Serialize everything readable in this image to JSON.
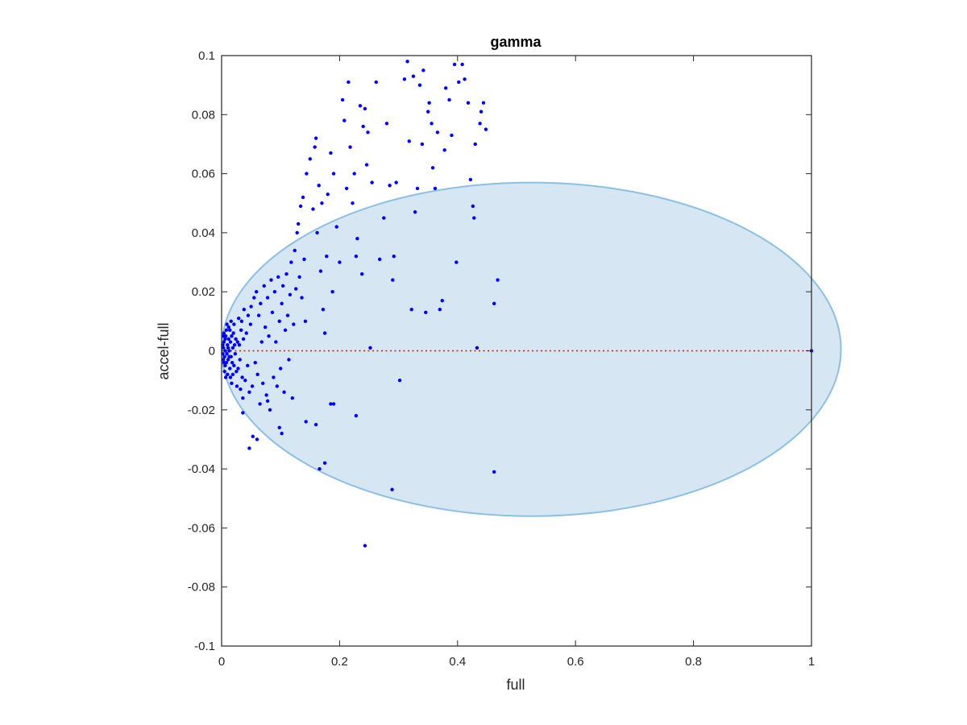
{
  "chart_data": {
    "type": "scatter",
    "title": "gamma",
    "xlabel": "full",
    "ylabel": "accel-full",
    "xlim": [
      0,
      1
    ],
    "ylim": [
      -0.1,
      0.1
    ],
    "xticks": [
      0,
      0.2,
      0.4,
      0.6,
      0.8,
      1
    ],
    "xtick_labels": [
      "0",
      "0.2",
      "0.4",
      "0.6",
      "0.8",
      "1"
    ],
    "yticks": [
      -0.1,
      -0.08,
      -0.06,
      -0.04,
      -0.02,
      0,
      0.02,
      0.04,
      0.06,
      0.08,
      0.1
    ],
    "ytick_labels": [
      "-0.1",
      "-0.08",
      "-0.06",
      "-0.04",
      "-0.02",
      "0",
      "0.02",
      "0.04",
      "0.06",
      "0.08",
      "0.1"
    ],
    "grid": false,
    "colors": {
      "points": "#0000ff",
      "ellipse_fill": "#d6e6f3",
      "ellipse_edge": "#8cc0e2",
      "zero_line": "#ff0000",
      "axes": "#262626"
    },
    "reference_line": {
      "y": 0,
      "style": "dotted"
    },
    "ellipse": {
      "center": [
        0.525,
        0.0005
      ],
      "radii": [
        0.525,
        0.0565
      ]
    },
    "points": [
      [
        0.003,
        0.001
      ],
      [
        0.005,
        -0.002
      ],
      [
        0.004,
        0.003
      ],
      [
        0.006,
        0.0
      ],
      [
        0.008,
        -0.004
      ],
      [
        0.002,
        0.002
      ],
      [
        0.007,
        0.005
      ],
      [
        0.009,
        -0.001
      ],
      [
        0.01,
        0.002
      ],
      [
        0.011,
        -0.003
      ],
      [
        0.012,
        0.004
      ],
      [
        0.006,
        -0.005
      ],
      [
        0.004,
        0.006
      ],
      [
        0.013,
        0.0
      ],
      [
        0.014,
        -0.006
      ],
      [
        0.015,
        0.003
      ],
      [
        0.005,
        -0.007
      ],
      [
        0.008,
        0.007
      ],
      [
        0.016,
        -0.002
      ],
      [
        0.017,
        0.005
      ],
      [
        0.003,
        -0.003
      ],
      [
        0.018,
        -0.004
      ],
      [
        0.019,
        0.001
      ],
      [
        0.02,
        0.006
      ],
      [
        0.01,
        -0.008
      ],
      [
        0.012,
        0.008
      ],
      [
        0.021,
        -0.005
      ],
      [
        0.022,
        0.002
      ],
      [
        0.007,
        -0.009
      ],
      [
        0.009,
        0.009
      ],
      [
        0.023,
        -0.001
      ],
      [
        0.024,
        0.004
      ],
      [
        0.025,
        -0.007
      ],
      [
        0.006,
        0.004
      ],
      [
        0.004,
        -0.004
      ],
      [
        0.011,
        0.001
      ],
      [
        0.013,
        -0.002
      ],
      [
        0.002,
        -0.001
      ],
      [
        0.003,
        0.005
      ],
      [
        0.015,
        -0.009
      ],
      [
        0.017,
        -0.011
      ],
      [
        0.019,
        -0.008
      ],
      [
        0.021,
        0.009
      ],
      [
        0.027,
        0.003
      ],
      [
        0.028,
        -0.006
      ],
      [
        0.03,
        0.002
      ],
      [
        0.031,
        -0.003
      ],
      [
        0.033,
        0.007
      ],
      [
        0.026,
        -0.012
      ],
      [
        0.029,
        0.011
      ],
      [
        0.035,
        -0.009
      ],
      [
        0.037,
        0.004
      ],
      [
        0.014,
        0.007
      ],
      [
        0.016,
        0.01
      ],
      [
        0.032,
        -0.013
      ],
      [
        0.034,
        0.01
      ],
      [
        0.036,
        -0.016
      ],
      [
        0.038,
        0.014
      ],
      [
        0.04,
        -0.01
      ],
      [
        0.042,
        0.006
      ],
      [
        0.044,
        -0.005
      ],
      [
        0.045,
        0.012
      ],
      [
        0.047,
        -0.014
      ],
      [
        0.049,
        0.009
      ],
      [
        0.05,
        0.015
      ],
      [
        0.052,
        -0.012
      ],
      [
        0.055,
        0.018
      ],
      [
        0.057,
        -0.004
      ],
      [
        0.059,
        0.02
      ],
      [
        0.061,
        -0.008
      ],
      [
        0.063,
        0.012
      ],
      [
        0.065,
        -0.018
      ],
      [
        0.066,
        0.016
      ],
      [
        0.068,
        0.003
      ],
      [
        0.07,
        -0.011
      ],
      [
        0.072,
        0.022
      ],
      [
        0.074,
        0.008
      ],
      [
        0.076,
        -0.015
      ],
      [
        0.078,
        0.018
      ],
      [
        0.08,
        0.005
      ],
      [
        0.082,
        -0.02
      ],
      [
        0.084,
        0.024
      ],
      [
        0.086,
        0.013
      ],
      [
        0.088,
        -0.009
      ],
      [
        0.09,
        0.02
      ],
      [
        0.092,
        0.003
      ],
      [
        0.094,
        -0.012
      ],
      [
        0.096,
        0.025
      ],
      [
        0.098,
        0.01
      ],
      [
        0.1,
        -0.006
      ],
      [
        0.102,
        0.016
      ],
      [
        0.104,
        0.022
      ],
      [
        0.106,
        -0.014
      ],
      [
        0.108,
        0.007
      ],
      [
        0.11,
        0.026
      ],
      [
        0.112,
        0.012
      ],
      [
        0.114,
        -0.003
      ],
      [
        0.116,
        0.019
      ],
      [
        0.118,
        0.03
      ],
      [
        0.12,
        -0.016
      ],
      [
        0.122,
        0.009
      ],
      [
        0.124,
        0.034
      ],
      [
        0.126,
        0.021
      ],
      [
        0.128,
        0.04
      ],
      [
        0.13,
        0.043
      ],
      [
        0.132,
        0.025
      ],
      [
        0.134,
        0.049
      ],
      [
        0.136,
        0.018
      ],
      [
        0.138,
        0.052
      ],
      [
        0.14,
        0.031
      ],
      [
        0.142,
        0.01
      ],
      [
        0.144,
        0.06
      ],
      [
        0.15,
        0.065
      ],
      [
        0.155,
        0.048
      ],
      [
        0.158,
        0.069
      ],
      [
        0.16,
        0.072
      ],
      [
        0.162,
        0.04
      ],
      [
        0.165,
        0.056
      ],
      [
        0.168,
        0.027
      ],
      [
        0.17,
        0.05
      ],
      [
        0.172,
        0.014
      ],
      [
        0.175,
        0.006
      ],
      [
        0.178,
        0.032
      ],
      [
        0.18,
        0.053
      ],
      [
        0.185,
        0.067
      ],
      [
        0.188,
        0.02
      ],
      [
        0.19,
        0.06
      ],
      [
        0.195,
        0.042
      ],
      [
        0.2,
        0.03
      ],
      [
        0.205,
        0.085
      ],
      [
        0.208,
        0.078
      ],
      [
        0.212,
        0.055
      ],
      [
        0.215,
        0.091
      ],
      [
        0.218,
        0.069
      ],
      [
        0.222,
        0.05
      ],
      [
        0.225,
        0.06
      ],
      [
        0.228,
        0.032
      ],
      [
        0.23,
        0.038
      ],
      [
        0.235,
        0.083
      ],
      [
        0.238,
        0.026
      ],
      [
        0.24,
        0.076
      ],
      [
        0.243,
        0.082
      ],
      [
        0.246,
        0.063
      ],
      [
        0.248,
        0.074
      ],
      [
        0.252,
        0.001
      ],
      [
        0.255,
        0.057
      ],
      [
        0.262,
        0.091
      ],
      [
        0.268,
        0.031
      ],
      [
        0.275,
        0.045
      ],
      [
        0.28,
        0.077
      ],
      [
        0.285,
        0.056
      ],
      [
        0.29,
        0.024
      ],
      [
        0.292,
        0.032
      ],
      [
        0.296,
        0.057
      ],
      [
        0.302,
        -0.01
      ],
      [
        0.31,
        0.092
      ],
      [
        0.315,
        0.098
      ],
      [
        0.318,
        0.071
      ],
      [
        0.322,
        0.014
      ],
      [
        0.325,
        0.093
      ],
      [
        0.328,
        0.047
      ],
      [
        0.332,
        0.055
      ],
      [
        0.336,
        0.09
      ],
      [
        0.34,
        0.07
      ],
      [
        0.342,
        0.095
      ],
      [
        0.346,
        0.013
      ],
      [
        0.35,
        0.081
      ],
      [
        0.352,
        0.084
      ],
      [
        0.356,
        0.077
      ],
      [
        0.358,
        0.062
      ],
      [
        0.362,
        0.055
      ],
      [
        0.366,
        0.074
      ],
      [
        0.37,
        0.014
      ],
      [
        0.374,
        0.017
      ],
      [
        0.378,
        0.068
      ],
      [
        0.38,
        0.089
      ],
      [
        0.386,
        0.085
      ],
      [
        0.39,
        0.073
      ],
      [
        0.395,
        0.097
      ],
      [
        0.398,
        0.03
      ],
      [
        0.402,
        0.091
      ],
      [
        0.408,
        0.097
      ],
      [
        0.412,
        0.092
      ],
      [
        0.418,
        0.084
      ],
      [
        0.422,
        0.058
      ],
      [
        0.426,
        0.049
      ],
      [
        0.428,
        0.045
      ],
      [
        0.43,
        0.07
      ],
      [
        0.433,
        0.001
      ],
      [
        0.438,
        0.077
      ],
      [
        0.44,
        0.081
      ],
      [
        0.444,
        0.084
      ],
      [
        0.448,
        0.075
      ],
      [
        0.462,
        0.016
      ],
      [
        0.468,
        0.024
      ],
      [
        0.462,
        -0.041
      ],
      [
        0.289,
        -0.047
      ],
      [
        0.243,
        -0.066
      ],
      [
        0.166,
        -0.04
      ],
      [
        0.175,
        -0.038
      ],
      [
        0.102,
        -0.028
      ],
      [
        0.098,
        -0.026
      ],
      [
        0.053,
        -0.029
      ],
      [
        0.06,
        -0.03
      ],
      [
        0.047,
        -0.033
      ],
      [
        0.228,
        -0.022
      ],
      [
        0.16,
        -0.025
      ],
      [
        0.185,
        -0.018
      ],
      [
        0.19,
        -0.018
      ],
      [
        0.143,
        -0.024
      ],
      [
        0.036,
        -0.021
      ],
      [
        0.078,
        -0.017
      ],
      [
        1.0,
        0.0
      ]
    ]
  }
}
